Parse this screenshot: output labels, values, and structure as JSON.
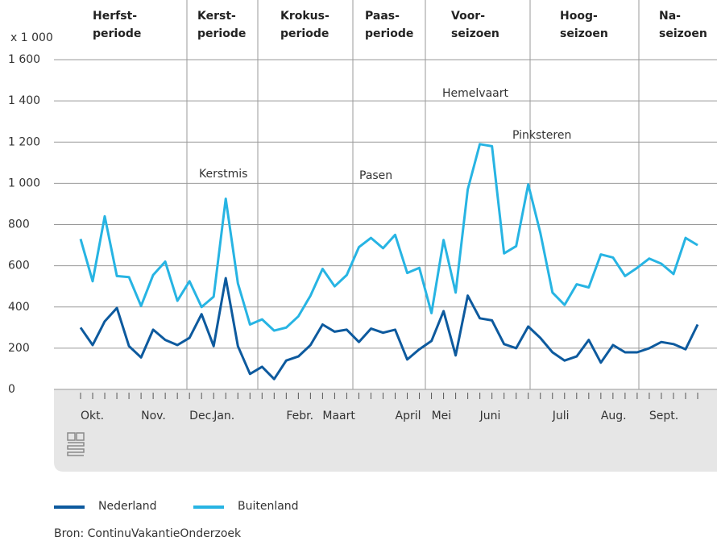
{
  "chart_data": {
    "type": "line",
    "y_unit": "x 1 000",
    "periods": [
      [
        "Herfst-",
        "periode"
      ],
      [
        "Kerst-",
        "periode"
      ],
      [
        "Krokus-",
        "periode"
      ],
      [
        "Paas-",
        "periode"
      ],
      [
        "Voor-",
        "seizoen"
      ],
      [
        "Hoog-",
        "seizoen"
      ],
      [
        "Na-",
        "seizoen"
      ]
    ],
    "annotations": [
      "Kerstmis",
      "Pasen",
      "Hemelvaart",
      "Pinksteren"
    ],
    "categories": [
      "Okt.",
      null,
      null,
      null,
      null,
      "Nov.",
      null,
      null,
      null,
      "Dec.",
      null,
      "Jan.",
      null,
      null,
      null,
      null,
      null,
      "Febr.",
      null,
      null,
      "Maart",
      null,
      null,
      null,
      null,
      null,
      "April",
      null,
      null,
      "Mei",
      null,
      null,
      null,
      "Juni",
      null,
      null,
      null,
      null,
      null,
      "Juli",
      null,
      null,
      null,
      "Aug.",
      null,
      null,
      null,
      "Sept.",
      null,
      null,
      null,
      null
    ],
    "series": [
      {
        "name": "Nederland",
        "color": "#0d5a9e",
        "values": [
          300,
          215,
          330,
          395,
          210,
          155,
          290,
          240,
          215,
          250,
          365,
          210,
          540,
          210,
          75,
          110,
          50,
          140,
          160,
          215,
          315,
          280,
          290,
          230,
          295,
          275,
          290,
          145,
          195,
          235,
          380,
          165,
          455,
          345,
          335,
          220,
          200,
          305,
          250,
          180,
          140,
          160,
          240,
          130,
          215,
          180,
          180,
          200,
          230,
          220,
          195,
          315
        ]
      },
      {
        "name": "Buitenland",
        "color": "#27b4e3",
        "values": [
          730,
          525,
          840,
          550,
          545,
          405,
          555,
          620,
          430,
          525,
          400,
          450,
          925,
          515,
          315,
          340,
          285,
          300,
          355,
          455,
          585,
          500,
          555,
          690,
          735,
          685,
          750,
          565,
          590,
          370,
          725,
          470,
          970,
          1190,
          1180,
          660,
          695,
          995,
          760,
          470,
          410,
          510,
          495,
          655,
          640,
          550,
          590,
          635,
          610,
          560,
          735,
          700
        ]
      }
    ],
    "ylim": [
      0,
      1600
    ],
    "yticks": [
      0,
      200,
      400,
      {
        "value": 600,
        "label": "600"
      },
      {
        "value": 800,
        "label": "800"
      },
      {
        "value": 1000,
        "label": "1 000"
      },
      {
        "value": 1200,
        "label": "1 200"
      },
      {
        "value": 1400,
        "label": "1 400"
      },
      {
        "value": 1600,
        "label": "1 600"
      }
    ],
    "grid": true,
    "source": "Bron: ContinuVakantieOnderzoek"
  }
}
